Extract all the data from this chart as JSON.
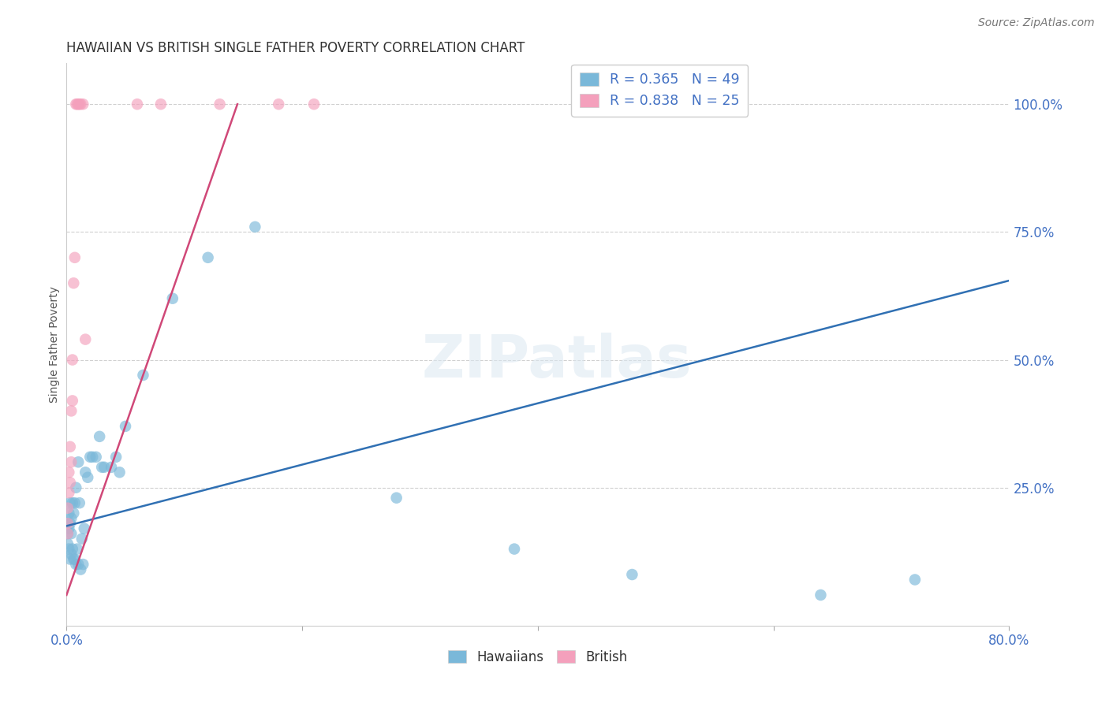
{
  "title": "HAWAIIAN VS BRITISH SINGLE FATHER POVERTY CORRELATION CHART",
  "source": "Source: ZipAtlas.com",
  "ylabel": "Single Father Poverty",
  "xlim": [
    0.0,
    0.8
  ],
  "ylim": [
    -0.02,
    1.08
  ],
  "y_ticks_right": [
    1.0,
    0.75,
    0.5,
    0.25
  ],
  "y_tick_labels_right": [
    "100.0%",
    "75.0%",
    "50.0%",
    "25.0%"
  ],
  "legend_r_hawaiian": "R = 0.365",
  "legend_n_hawaiian": "N = 49",
  "legend_r_british": "R = 0.838",
  "legend_n_british": "N = 25",
  "hawaiian_color": "#7ab8d9",
  "british_color": "#f4a0bc",
  "hawaiian_line_color": "#3070b3",
  "british_line_color": "#d04878",
  "tick_color": "#4472c4",
  "grid_color": "#d0d0d0",
  "watermark": "ZIPatlas",
  "hawaiian_x": [
    0.001,
    0.001,
    0.001,
    0.002,
    0.002,
    0.002,
    0.003,
    0.003,
    0.003,
    0.004,
    0.004,
    0.004,
    0.005,
    0.005,
    0.006,
    0.006,
    0.007,
    0.007,
    0.008,
    0.008,
    0.009,
    0.01,
    0.01,
    0.011,
    0.012,
    0.013,
    0.014,
    0.015,
    0.016,
    0.018,
    0.02,
    0.022,
    0.025,
    0.028,
    0.03,
    0.032,
    0.038,
    0.042,
    0.045,
    0.05,
    0.065,
    0.09,
    0.12,
    0.16,
    0.28,
    0.38,
    0.48,
    0.64,
    0.72
  ],
  "hawaiian_y": [
    0.18,
    0.16,
    0.14,
    0.2,
    0.17,
    0.13,
    0.22,
    0.18,
    0.11,
    0.19,
    0.16,
    0.12,
    0.22,
    0.13,
    0.2,
    0.11,
    0.22,
    0.11,
    0.25,
    0.1,
    0.13,
    0.3,
    0.1,
    0.22,
    0.09,
    0.15,
    0.1,
    0.17,
    0.28,
    0.27,
    0.31,
    0.31,
    0.31,
    0.35,
    0.29,
    0.29,
    0.29,
    0.31,
    0.28,
    0.37,
    0.47,
    0.62,
    0.7,
    0.76,
    0.23,
    0.13,
    0.08,
    0.04,
    0.07
  ],
  "british_x": [
    0.001,
    0.001,
    0.001,
    0.002,
    0.002,
    0.003,
    0.003,
    0.004,
    0.004,
    0.005,
    0.005,
    0.006,
    0.007,
    0.008,
    0.009,
    0.01,
    0.011,
    0.012,
    0.014,
    0.016,
    0.06,
    0.08,
    0.13,
    0.18,
    0.21
  ],
  "british_y": [
    0.21,
    0.18,
    0.16,
    0.28,
    0.24,
    0.33,
    0.26,
    0.4,
    0.3,
    0.5,
    0.42,
    0.65,
    0.7,
    1.0,
    1.0,
    1.0,
    1.0,
    1.0,
    1.0,
    0.54,
    1.0,
    1.0,
    1.0,
    1.0,
    1.0
  ],
  "haw_line_x": [
    0.0,
    0.8
  ],
  "haw_line_y": [
    0.175,
    0.655
  ],
  "brit_line_x": [
    0.0,
    0.145
  ],
  "brit_line_y": [
    0.04,
    1.0
  ]
}
